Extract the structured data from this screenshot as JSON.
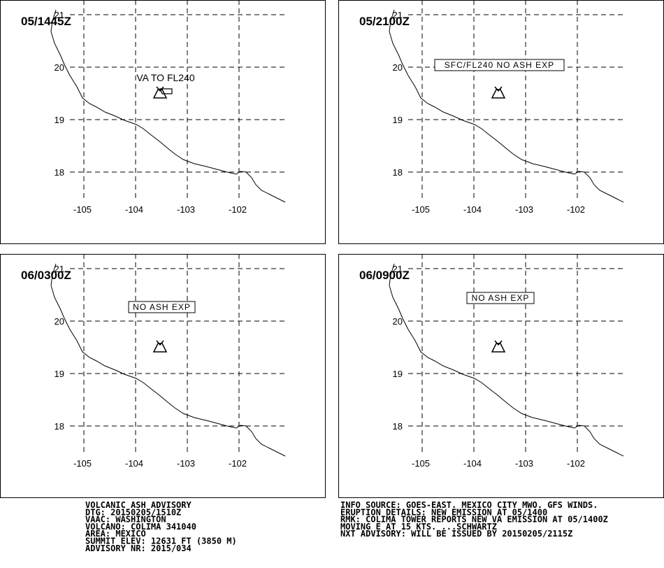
{
  "panels": [
    {
      "time": "05/1445Z",
      "annotation": "VA TO FL240",
      "annotation_style": "plain",
      "ash_area": true
    },
    {
      "time": "05/2100Z",
      "annotation": "SFC/FL240 NO ASH EXP",
      "annotation_style": "boxed",
      "ash_area": false
    },
    {
      "time": "06/0300Z",
      "annotation": "NO ASH EXP",
      "annotation_style": "boxed",
      "ash_area": false
    },
    {
      "time": "06/0900Z",
      "annotation": "NO ASH EXP",
      "annotation_style": "boxed",
      "ash_area": false
    }
  ],
  "lat_labels": [
    "21",
    "20",
    "19",
    "18"
  ],
  "lon_labels": [
    "-105",
    "-104",
    "-103",
    "-102"
  ],
  "advisory_left": [
    "VOLCANIC ASH ADVISORY",
    "DTG: 20150205/1510Z",
    "VAAC: WASHINGTON",
    "VOLCANO: COLIMA 341040",
    "AREA: MEXICO",
    "SUMMIT ELEV: 12631 FT (3850 M)",
    "ADVISORY NR: 2015/034"
  ],
  "advisory_right": [
    "INFO SOURCE: GOES-EAST. MEXICO CITY MWO. GFS WINDS.",
    "ERUPTION DETAILS: NEW EMISSION AT 05/1400",
    "RMK: COLIMA TOWER REPORTS NEW VA EMISSION AT 05/1400Z",
    "MOVING E AT 15 KTS. ...SCHWARTZ",
    "NXT ADVISORY: WILL BE ISSUED BY 20150205/2115Z"
  ]
}
